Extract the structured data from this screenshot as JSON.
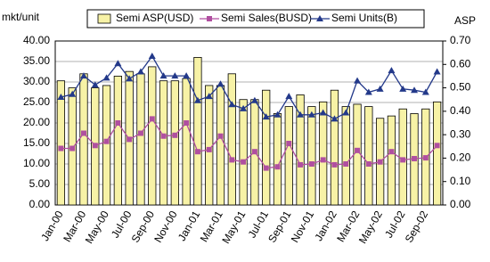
{
  "chart_data": {
    "type": "bar-line",
    "ylabel": "mkt/unit",
    "y2label": "ASP",
    "categories": [
      "Jan-00",
      null,
      "Mar-00",
      null,
      "May-00",
      null,
      "Jul-00",
      null,
      "Sep-00",
      null,
      "Nov-00",
      null,
      "Jan-01",
      null,
      "Mar-01",
      null,
      "May-01",
      null,
      "Jul-01",
      null,
      "Sep-01",
      null,
      "Nov-01",
      null,
      "Jan-02",
      null,
      "Mar-02",
      null,
      "May-02",
      null,
      "Jul-02",
      null,
      "Sep-02",
      null
    ],
    "series": [
      {
        "name": "Semi ASP(USD)",
        "kind": "bar",
        "axis": "y2",
        "color": "#f7f2a6",
        "values": [
          0.53,
          0.5,
          0.56,
          0.5,
          0.51,
          0.55,
          0.57,
          0.56,
          0.59,
          0.53,
          0.53,
          0.54,
          0.63,
          0.51,
          0.51,
          0.56,
          0.45,
          0.45,
          0.49,
          0.39,
          0.42,
          0.47,
          0.42,
          0.44,
          0.49,
          0.42,
          0.43,
          0.42,
          0.37,
          0.38,
          0.41,
          0.39,
          0.41,
          0.44
        ]
      },
      {
        "name": "Semi Sales(BUSD)",
        "kind": "line",
        "marker": "square",
        "color": "#b04fa0",
        "values": [
          13.8,
          13.8,
          17.5,
          14.5,
          15.5,
          20.0,
          16.0,
          17.5,
          21.0,
          16.8,
          17.0,
          20.0,
          13.0,
          13.5,
          16.8,
          11.0,
          10.5,
          13.0,
          9.0,
          9.3,
          15.0,
          9.8,
          10.0,
          11.0,
          9.8,
          10.0,
          13.3,
          10.0,
          10.5,
          13.0,
          11.0,
          11.3,
          11.5,
          14.5
        ]
      },
      {
        "name": "Semi Units(B)",
        "kind": "line",
        "marker": "triangle",
        "color": "#23398a",
        "values": [
          26.3,
          27.0,
          31.5,
          29.3,
          31.0,
          34.5,
          30.8,
          32.5,
          36.3,
          31.5,
          31.5,
          31.5,
          25.5,
          26.5,
          29.5,
          24.5,
          23.5,
          25.5,
          21.5,
          22.0,
          26.5,
          22.0,
          22.0,
          22.5,
          21.0,
          22.5,
          30.3,
          27.5,
          28.3,
          32.8,
          28.3,
          28.0,
          27.5,
          32.5
        ]
      }
    ],
    "ylim": [
      0,
      40
    ],
    "yticks": [
      {
        "value": 0,
        "label": "0.00"
      },
      {
        "value": 5,
        "label": "5.00"
      },
      {
        "value": 10,
        "label": "10.00"
      },
      {
        "value": 15,
        "label": "15.00"
      },
      {
        "value": 20,
        "label": "20.00"
      },
      {
        "value": 25,
        "label": "25.00"
      },
      {
        "value": 30,
        "label": "30.00"
      },
      {
        "value": 35,
        "label": "35.00"
      },
      {
        "value": 40,
        "label": "40.00"
      }
    ],
    "y2lim": [
      0,
      0.7
    ],
    "y2ticks": [
      {
        "value": 0,
        "label": "0.00"
      },
      {
        "value": 0.1,
        "label": "0.10"
      },
      {
        "value": 0.2,
        "label": "0.20"
      },
      {
        "value": 0.3,
        "label": "0.30"
      },
      {
        "value": 0.4,
        "label": "0.40"
      },
      {
        "value": 0.5,
        "label": "0.50"
      },
      {
        "value": 0.6,
        "label": "0.60"
      },
      {
        "value": 0.7,
        "label": "0.70"
      }
    ],
    "grid": true
  }
}
